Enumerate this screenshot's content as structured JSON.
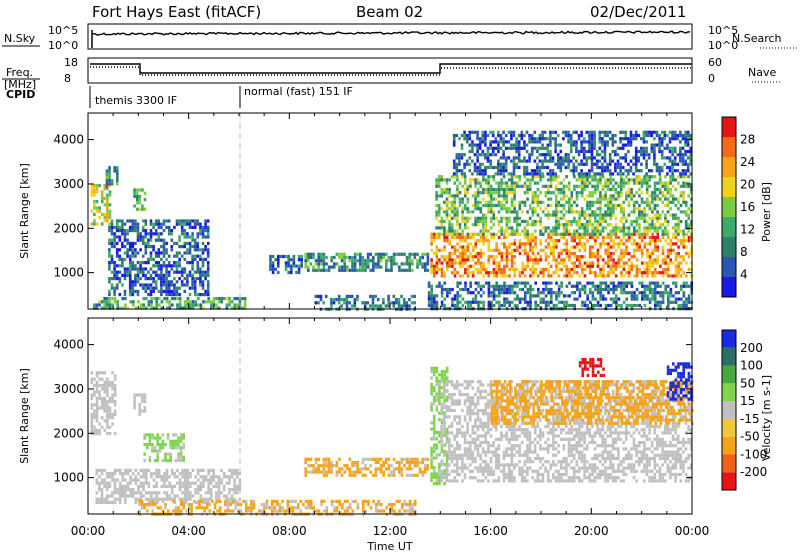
{
  "header": {
    "site": "Fort Hays East (fitACF)",
    "beam": "Beam 02",
    "date": "02/Dec/2011"
  },
  "strips": {
    "nsky_label": "N.Sky",
    "nsearch_label": "N.Search",
    "noise_ticks_left": [
      "10^5",
      "10^0"
    ],
    "noise_ticks_right": [
      "10^5",
      "10^0"
    ],
    "freq_label_1": "Freq.",
    "freq_label_2": "[MHz]",
    "freq_ticks": [
      "18",
      "8"
    ],
    "nave_label": "Nave",
    "nave_ticks": [
      "60",
      "0"
    ],
    "cpid_label": "CPID",
    "cpid_segments": [
      {
        "label": "themis 3300 IF",
        "start_hour": 0,
        "end_hour": 6
      },
      {
        "label": "normal (fast) 151 IF",
        "start_hour": 6,
        "end_hour": 24
      }
    ]
  },
  "colors": {
    "power": [
      "#1a1ae6",
      "#2a55b5",
      "#2f7f6a",
      "#3da96b",
      "#7ccc42",
      "#f0d21e",
      "#f5a31a",
      "#f26a1a",
      "#e61414"
    ],
    "velocity_neg": [
      "#e61414",
      "#f0601a",
      "#f5a31a",
      "#f0c83c"
    ],
    "velocity_pos": [
      "#c0c0c0",
      "#7ed44a",
      "#46a83f",
      "#2a6f6a",
      "#1a2ae0"
    ]
  },
  "chart_data": [
    {
      "type": "heatmap",
      "panel": "power",
      "ylabel": "Slant Range [km]",
      "colorbar_label": "Power [dB]",
      "colorbar_ticks": [
        "4",
        "8",
        "12",
        "16",
        "20",
        "24",
        "28"
      ],
      "colorbar_range": [
        0,
        32
      ],
      "xlim": [
        0,
        24
      ],
      "ylim": [
        180,
        4600
      ],
      "yticks": [
        "1000",
        "2000",
        "3000",
        "4000"
      ],
      "ytick_values": [
        1000,
        2000,
        3000,
        4000
      ],
      "regions": [
        {
          "t0": 0.1,
          "t1": 0.9,
          "r0": 2100,
          "r1": 3000,
          "value": 18
        },
        {
          "t0": 0.7,
          "t1": 1.2,
          "r0": 2900,
          "r1": 3400,
          "value": 10
        },
        {
          "t0": 1.8,
          "t1": 2.3,
          "r0": 2400,
          "r1": 2900,
          "value": 14
        },
        {
          "t0": 0.8,
          "t1": 4.8,
          "r0": 500,
          "r1": 2200,
          "value": 6
        },
        {
          "t0": 0.2,
          "t1": 6.2,
          "r0": 200,
          "r1": 450,
          "value": 12
        },
        {
          "t0": 7.2,
          "t1": 8.5,
          "r0": 1000,
          "r1": 1400,
          "value": 6
        },
        {
          "t0": 8.6,
          "t1": 13.5,
          "r0": 1050,
          "r1": 1450,
          "value": 10
        },
        {
          "t0": 9.0,
          "t1": 13.0,
          "r0": 200,
          "r1": 500,
          "value": 8
        },
        {
          "t0": 13.6,
          "t1": 24,
          "r0": 900,
          "r1": 1900,
          "value": 24
        },
        {
          "t0": 13.8,
          "t1": 24,
          "r0": 1900,
          "r1": 3200,
          "value": 14
        },
        {
          "t0": 14.5,
          "t1": 24,
          "r0": 3200,
          "r1": 4200,
          "value": 6
        },
        {
          "t0": 13.5,
          "t1": 24,
          "r0": 200,
          "r1": 800,
          "value": 8
        }
      ]
    },
    {
      "type": "heatmap",
      "panel": "velocity",
      "ylabel": "Slant Range [km]",
      "colorbar_label": "Velocity [m s-1]",
      "colorbar_ticks": [
        "-200",
        "-100",
        "-50",
        "-15",
        "15",
        "50",
        "100",
        "200"
      ],
      "colorbar_range": [
        -250,
        250
      ],
      "xlim": [
        0,
        24
      ],
      "ylim": [
        180,
        4600
      ],
      "yticks": [
        "1000",
        "2000",
        "3000",
        "4000"
      ],
      "ytick_values": [
        1000,
        2000,
        3000,
        4000
      ],
      "xlabel": "Time UT",
      "xticks": [
        "00:00",
        "04:00",
        "08:00",
        "12:00",
        "16:00",
        "20:00",
        "00:00"
      ],
      "xtick_values": [
        0,
        4,
        8,
        12,
        16,
        20,
        24
      ],
      "regions": [
        {
          "t0": 0.1,
          "t1": 1.1,
          "r0": 2000,
          "r1": 3400,
          "value": 0
        },
        {
          "t0": 1.8,
          "t1": 2.3,
          "r0": 2400,
          "r1": 2900,
          "value": 0
        },
        {
          "t0": 2.2,
          "t1": 3.8,
          "r0": 1400,
          "r1": 2000,
          "value": 30
        },
        {
          "t0": 0.3,
          "t1": 6.0,
          "r0": 450,
          "r1": 1200,
          "value": 0
        },
        {
          "t0": 2.0,
          "t1": 13.0,
          "r0": 200,
          "r1": 500,
          "value": -30
        },
        {
          "t0": 8.6,
          "t1": 13.5,
          "r0": 1050,
          "r1": 1450,
          "value": -30
        },
        {
          "t0": 13.6,
          "t1": 14.3,
          "r0": 900,
          "r1": 3500,
          "value": 30
        },
        {
          "t0": 14.0,
          "t1": 24,
          "r0": 900,
          "r1": 3200,
          "value": 0
        },
        {
          "t0": 16.0,
          "t1": 24,
          "r0": 2200,
          "r1": 3200,
          "value": -40
        },
        {
          "t0": 23.0,
          "t1": 24,
          "r0": 2800,
          "r1": 3600,
          "value": 200
        },
        {
          "t0": 19.5,
          "t1": 20.5,
          "r0": 3300,
          "r1": 3700,
          "value": -200
        }
      ]
    }
  ]
}
